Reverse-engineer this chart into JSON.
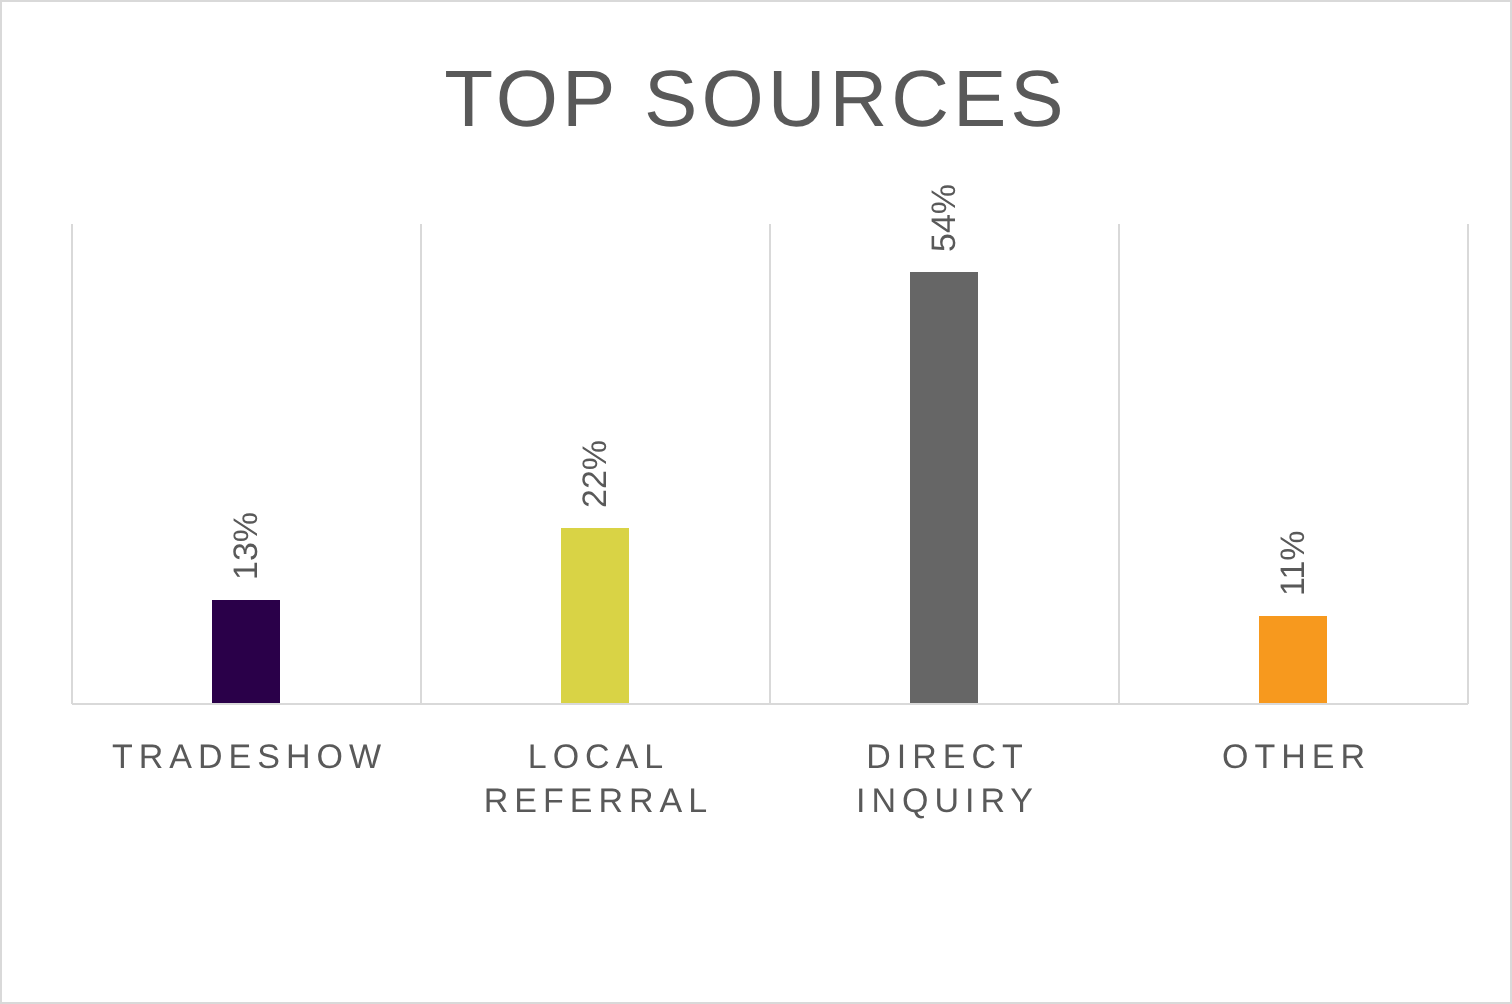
{
  "chart_data": {
    "type": "bar",
    "title": "TOP SOURCES",
    "categories": [
      "TRADESHOW",
      "LOCAL REFERRAL",
      "DIRECT INQUIRY",
      "OTHER"
    ],
    "values": [
      13,
      22,
      54,
      11
    ],
    "colors": [
      "#2a0049",
      "#d9d345",
      "#666666",
      "#f7991e"
    ],
    "value_labels": [
      "13%",
      "22%",
      "54%",
      "11%"
    ],
    "ylim": [
      0,
      60
    ],
    "grid": "x"
  }
}
